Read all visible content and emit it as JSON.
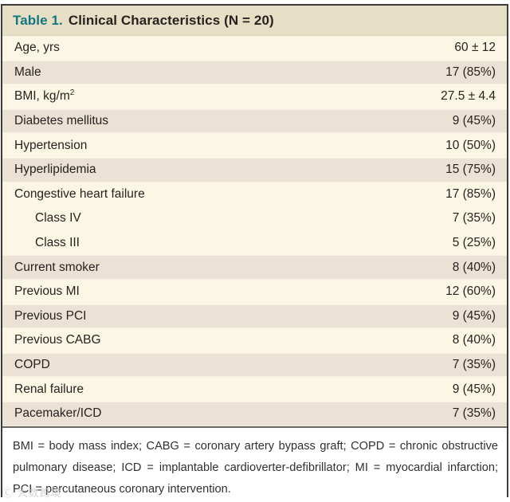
{
  "header": {
    "table_label": "Table 1.",
    "title": "Clinical Characteristics (N = 20)"
  },
  "table": {
    "rows": [
      {
        "label": "Age, yrs",
        "value": "60 ± 12",
        "shade": "cream",
        "indent": false
      },
      {
        "label": "Male",
        "value": "17 (85%)",
        "shade": "beige",
        "indent": false
      },
      {
        "label": "BMI, kg/m",
        "sup": "2",
        "value": "27.5 ± 4.4",
        "shade": "cream",
        "indent": false
      },
      {
        "label": "Diabetes mellitus",
        "value": "9 (45%)",
        "shade": "beige",
        "indent": false
      },
      {
        "label": "Hypertension",
        "value": "10 (50%)",
        "shade": "cream",
        "indent": false
      },
      {
        "label": "Hyperlipidemia",
        "value": "15 (75%)",
        "shade": "beige",
        "indent": false
      },
      {
        "label": "Congestive heart failure",
        "value": "17 (85%)",
        "shade": "cream",
        "indent": false
      },
      {
        "label": "Class IV",
        "value": "7 (35%)",
        "shade": "cream",
        "indent": true
      },
      {
        "label": "Class III",
        "value": "5 (25%)",
        "shade": "cream",
        "indent": true
      },
      {
        "label": "Current smoker",
        "value": "8 (40%)",
        "shade": "beige",
        "indent": false
      },
      {
        "label": "Previous MI",
        "value": "12 (60%)",
        "shade": "cream",
        "indent": false
      },
      {
        "label": "Previous PCI",
        "value": "9 (45%)",
        "shade": "beige",
        "indent": false
      },
      {
        "label": "Previous CABG",
        "value": "8 (40%)",
        "shade": "cream",
        "indent": false
      },
      {
        "label": "COPD",
        "value": "7 (35%)",
        "shade": "beige",
        "indent": false
      },
      {
        "label": "Renal failure",
        "value": "9 (45%)",
        "shade": "cream",
        "indent": false
      },
      {
        "label": "Pacemaker/ICD",
        "value": "7 (35%)",
        "shade": "beige",
        "indent": false
      }
    ]
  },
  "footnote": {
    "text": "BMI = body mass index; CABG = coronary artery bypass graft; COPD = chronic obstructive pulmonary disease; ICD = implantable cardioverter-defibrillator; MI = myocardial infarction; PCI = percutaneous coronary intervention."
  },
  "watermark": {
    "text": "Ⓒ 大数跨境"
  },
  "colors": {
    "accent_teal": "#13787f",
    "header_band": "#e7dec6",
    "row_cream": "#fbf7e4",
    "row_beige": "#ebe2d5",
    "border": "#3d3b38",
    "text": "#262220"
  }
}
